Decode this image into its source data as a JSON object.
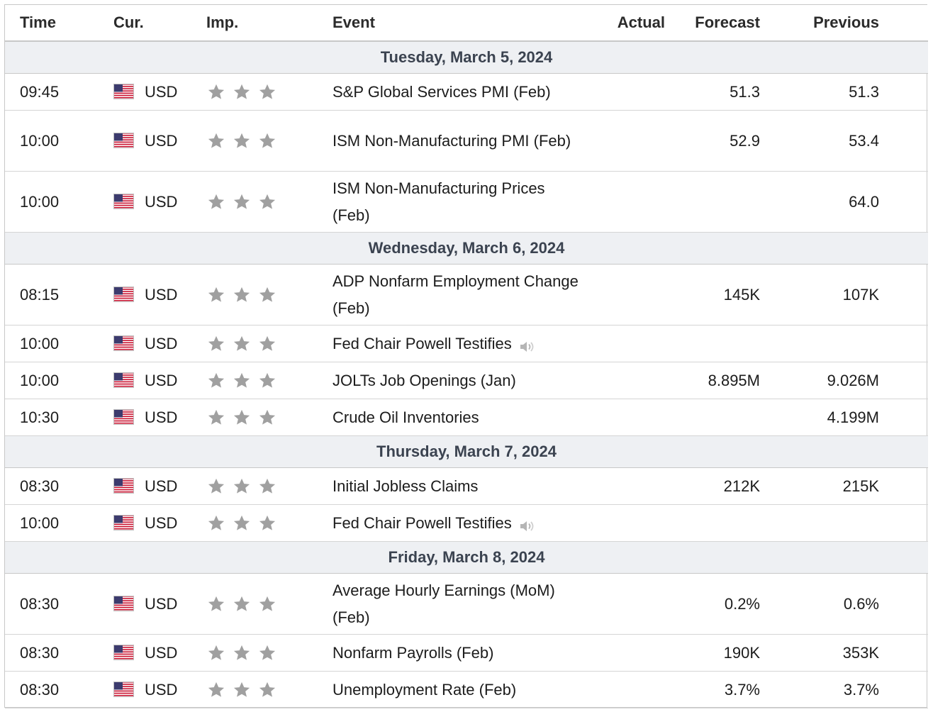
{
  "headers": {
    "time": "Time",
    "cur": "Cur.",
    "imp": "Imp.",
    "event": "Event",
    "actual": "Actual",
    "forecast": "Forecast",
    "previous": "Previous"
  },
  "colors": {
    "previous_highlight": "#e33b3b",
    "day_background": "#eef0f3",
    "star": "#a0a0a0"
  },
  "icons": {
    "flag": "us-flag-icon",
    "importance": "star-icon",
    "audio": "speaker-icon"
  },
  "days": [
    {
      "label": "Tuesday, March 5, 2024",
      "events": [
        {
          "time": "09:45",
          "cur": "USD",
          "stars": 3,
          "event": "S&P Global Services PMI (Feb)",
          "actual": "",
          "forecast": "51.3",
          "previous": "51.3",
          "previous_highlight": true,
          "speaker": false,
          "lines": 1
        },
        {
          "time": "10:00",
          "cur": "USD",
          "stars": 3,
          "event": "ISM Non-Manufacturing PMI (Feb)",
          "actual": "",
          "forecast": "52.9",
          "previous": "53.4",
          "previous_highlight": false,
          "speaker": false,
          "lines": 2
        },
        {
          "time": "10:00",
          "cur": "USD",
          "stars": 3,
          "event": "ISM Non-Manufacturing Prices (Feb)",
          "actual": "",
          "forecast": "",
          "previous": "64.0",
          "previous_highlight": false,
          "speaker": false,
          "lines": 2
        }
      ]
    },
    {
      "label": "Wednesday, March 6, 2024",
      "events": [
        {
          "time": "08:15",
          "cur": "USD",
          "stars": 3,
          "event": "ADP Nonfarm Employment Change (Feb)",
          "actual": "",
          "forecast": "145K",
          "previous": "107K",
          "previous_highlight": false,
          "speaker": false,
          "lines": 2
        },
        {
          "time": "10:00",
          "cur": "USD",
          "stars": 3,
          "event": "Fed Chair Powell Testifies",
          "actual": "",
          "forecast": "",
          "previous": "",
          "previous_highlight": false,
          "speaker": true,
          "lines": 1
        },
        {
          "time": "10:00",
          "cur": "USD",
          "stars": 3,
          "event": "JOLTs Job Openings (Jan)",
          "actual": "",
          "forecast": "8.895M",
          "previous": "9.026M",
          "previous_highlight": false,
          "speaker": false,
          "lines": 1
        },
        {
          "time": "10:30",
          "cur": "USD",
          "stars": 3,
          "event": "Crude Oil Inventories",
          "actual": "",
          "forecast": "",
          "previous": "4.199M",
          "previous_highlight": false,
          "speaker": false,
          "lines": 1
        }
      ]
    },
    {
      "label": "Thursday, March 7, 2024",
      "events": [
        {
          "time": "08:30",
          "cur": "USD",
          "stars": 3,
          "event": "Initial Jobless Claims",
          "actual": "",
          "forecast": "212K",
          "previous": "215K",
          "previous_highlight": false,
          "speaker": false,
          "lines": 1
        },
        {
          "time": "10:00",
          "cur": "USD",
          "stars": 3,
          "event": "Fed Chair Powell Testifies",
          "actual": "",
          "forecast": "",
          "previous": "",
          "previous_highlight": false,
          "speaker": true,
          "lines": 1
        }
      ]
    },
    {
      "label": "Friday, March 8, 2024",
      "events": [
        {
          "time": "08:30",
          "cur": "USD",
          "stars": 3,
          "event": "Average Hourly Earnings (MoM) (Feb)",
          "actual": "",
          "forecast": "0.2%",
          "previous": "0.6%",
          "previous_highlight": false,
          "speaker": false,
          "lines": 2
        },
        {
          "time": "08:30",
          "cur": "USD",
          "stars": 3,
          "event": "Nonfarm Payrolls (Feb)",
          "actual": "",
          "forecast": "190K",
          "previous": "353K",
          "previous_highlight": false,
          "speaker": false,
          "lines": 1
        },
        {
          "time": "08:30",
          "cur": "USD",
          "stars": 3,
          "event": "Unemployment Rate (Feb)",
          "actual": "",
          "forecast": "3.7%",
          "previous": "3.7%",
          "previous_highlight": false,
          "speaker": false,
          "lines": 1
        }
      ]
    }
  ]
}
